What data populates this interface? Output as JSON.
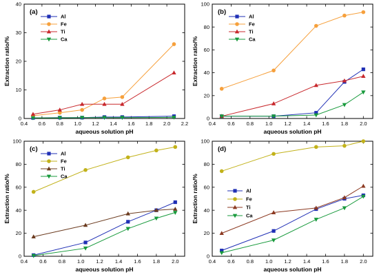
{
  "chart_data": [
    {
      "type": "line",
      "panel_label": "(a)",
      "xlabel": "aqueous solution pH",
      "ylabel": "Extraction ratio/%",
      "xlim": [
        0.4,
        2.2
      ],
      "ylim": [
        0,
        40
      ],
      "xticks": [
        "0.4",
        "0.6",
        "0.8",
        "1.0",
        "1.2",
        "1.4",
        "1.6",
        "1.8",
        "2.0",
        "2.2"
      ],
      "yticks": [
        "0",
        "10",
        "20",
        "30",
        "40"
      ],
      "legend_position": "top-left",
      "series": [
        {
          "name": "Al",
          "color": "#1f2fb5",
          "marker": "square",
          "x": [
            0.5,
            0.8,
            1.05,
            1.3,
            1.5,
            2.08
          ],
          "y": [
            0.2,
            0.3,
            0.3,
            0.5,
            0.5,
            0.8
          ]
        },
        {
          "name": "Fe",
          "color": "#f6a03c",
          "marker": "circle",
          "x": [
            0.5,
            0.8,
            1.05,
            1.3,
            1.5,
            2.08
          ],
          "y": [
            1.0,
            2.0,
            3.0,
            7.0,
            7.5,
            26.0
          ]
        },
        {
          "name": "Ti",
          "color": "#c8282c",
          "marker": "triangle-up",
          "x": [
            0.5,
            0.8,
            1.05,
            1.3,
            1.5,
            2.08
          ],
          "y": [
            1.5,
            3.0,
            5.0,
            5.0,
            5.0,
            16.0
          ]
        },
        {
          "name": "Ca",
          "color": "#189a3c",
          "marker": "triangle-down",
          "x": [
            0.5,
            0.8,
            1.05,
            1.3,
            1.5,
            2.08
          ],
          "y": [
            0.2,
            0.2,
            0.3,
            0.3,
            0.3,
            0.4
          ]
        }
      ]
    },
    {
      "type": "line",
      "panel_label": "(b)",
      "xlabel": "aqueous solution pH",
      "ylabel": "Extraction ratio/%",
      "xlim": [
        0.4,
        2.1
      ],
      "ylim": [
        0,
        100
      ],
      "xticks": [
        "0.4",
        "0.6",
        "0.8",
        "1.0",
        "1.2",
        "1.4",
        "1.6",
        "1.8",
        "2.0"
      ],
      "yticks": [
        "0",
        "20",
        "40",
        "60",
        "80",
        "100"
      ],
      "legend_position": "top-left",
      "series": [
        {
          "name": "Al",
          "color": "#1f2fb5",
          "marker": "square",
          "x": [
            0.5,
            1.05,
            1.5,
            1.8,
            2.0
          ],
          "y": [
            2,
            2,
            5,
            32,
            43
          ]
        },
        {
          "name": "Fe",
          "color": "#f6a03c",
          "marker": "circle",
          "x": [
            0.5,
            1.05,
            1.5,
            1.8,
            2.0
          ],
          "y": [
            26,
            42,
            81,
            90,
            93
          ]
        },
        {
          "name": "Ti",
          "color": "#c8282c",
          "marker": "triangle-up",
          "x": [
            0.5,
            1.05,
            1.5,
            1.8,
            2.0
          ],
          "y": [
            2,
            13,
            29,
            33,
            37
          ]
        },
        {
          "name": "Ca",
          "color": "#189a3c",
          "marker": "triangle-down",
          "x": [
            0.5,
            1.05,
            1.5,
            1.8,
            2.0
          ],
          "y": [
            2,
            2,
            3,
            12,
            23
          ]
        }
      ]
    },
    {
      "type": "line",
      "panel_label": "(c)",
      "xlabel": "aqueous solution pH",
      "ylabel": "Extraction ratio/%",
      "xlim": [
        0.4,
        2.1
      ],
      "ylim": [
        0,
        100
      ],
      "xticks": [
        "0.4",
        "0.6",
        "0.8",
        "1.0",
        "1.2",
        "1.4",
        "1.6",
        "1.8",
        "2.0"
      ],
      "yticks": [
        "0",
        "20",
        "40",
        "60",
        "80",
        "100"
      ],
      "legend_position": "top-left",
      "series": [
        {
          "name": "Al",
          "color": "#1f2fb5",
          "marker": "square",
          "x": [
            0.5,
            1.05,
            1.5,
            1.8,
            2.0
          ],
          "y": [
            1,
            12,
            30,
            40,
            47
          ]
        },
        {
          "name": "Fe",
          "color": "#c2b21a",
          "marker": "circle",
          "x": [
            0.5,
            1.05,
            1.5,
            1.8,
            2.0
          ],
          "y": [
            56,
            75,
            86,
            92,
            95
          ]
        },
        {
          "name": "Ti",
          "color": "#6b3b1f",
          "marker": "triangle-up",
          "x": [
            0.5,
            1.05,
            1.5,
            1.8,
            2.0
          ],
          "y": [
            17,
            27,
            37,
            40,
            41
          ]
        },
        {
          "name": "Ca",
          "color": "#189a3c",
          "marker": "triangle-down",
          "x": [
            0.5,
            1.05,
            1.5,
            1.8,
            2.0
          ],
          "y": [
            0.5,
            7,
            24,
            33,
            38
          ]
        }
      ]
    },
    {
      "type": "line",
      "panel_label": "(d)",
      "xlabel": "aqueous solution pH",
      "ylabel": "Extraction ratio/%",
      "xlim": [
        0.4,
        2.1
      ],
      "ylim": [
        0,
        100
      ],
      "xticks": [
        "0.4",
        "0.6",
        "0.8",
        "1.0",
        "1.2",
        "1.4",
        "1.6",
        "1.8",
        "2.0"
      ],
      "yticks": [
        "0",
        "20",
        "40",
        "60",
        "80",
        "100"
      ],
      "legend_position": "center-left",
      "series": [
        {
          "name": "Al",
          "color": "#1f2fb5",
          "marker": "square",
          "x": [
            0.5,
            1.05,
            1.5,
            1.8,
            2.0
          ],
          "y": [
            5,
            22,
            41,
            50,
            53
          ]
        },
        {
          "name": "Fe",
          "color": "#c2b21a",
          "marker": "circle",
          "x": [
            0.5,
            1.05,
            1.5,
            1.8,
            2.0
          ],
          "y": [
            74,
            89,
            95,
            96,
            100
          ]
        },
        {
          "name": "Ti",
          "color": "#8c3a22",
          "marker": "triangle-up",
          "x": [
            0.5,
            1.05,
            1.5,
            1.8,
            2.0
          ],
          "y": [
            20,
            38,
            42,
            51,
            61
          ]
        },
        {
          "name": "Ca",
          "color": "#189a3c",
          "marker": "triangle-down",
          "x": [
            0.5,
            1.05,
            1.5,
            1.8,
            2.0
          ],
          "y": [
            3,
            14,
            32,
            42,
            52
          ]
        }
      ]
    }
  ]
}
